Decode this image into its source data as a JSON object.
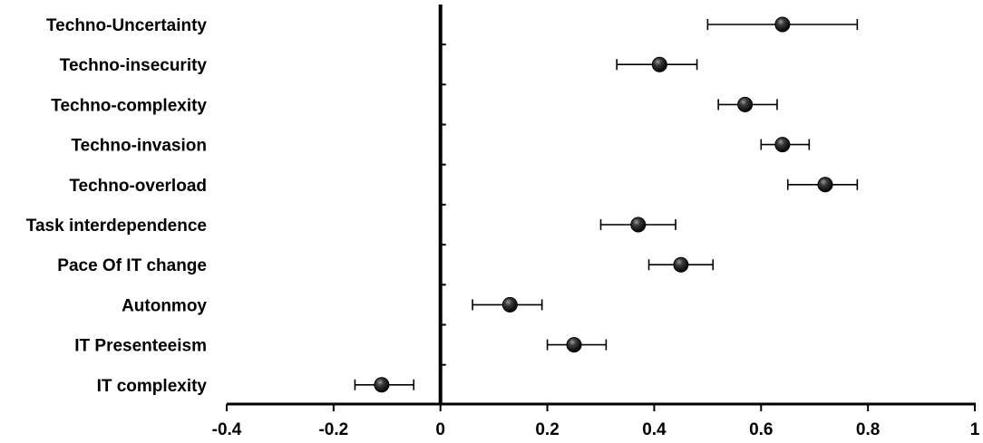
{
  "chart_data": {
    "type": "scatter",
    "title": "",
    "xlabel": "",
    "ylabel": "",
    "xlim": [
      -0.4,
      1
    ],
    "x_ticks": [
      "-0.4",
      "-0.2",
      "0",
      "0.2",
      "0.4",
      "0.6",
      "0.8",
      "1"
    ],
    "x_tick_values": [
      -0.4,
      -0.2,
      0,
      0.2,
      0.4,
      0.6,
      0.8,
      1
    ],
    "grid": false,
    "legend": "none",
    "marker_style": "black sphere with horizontal error bars",
    "categories": [
      "Techno-Uncertainty",
      "Techno-insecurity",
      "Techno-complexity",
      "Techno-invasion",
      "Techno-overload",
      "Task interdependence",
      "Pace Of IT change",
      "Autonmoy",
      "IT Presenteeism",
      "IT complexity"
    ],
    "values": [
      0.64,
      0.41,
      0.57,
      0.64,
      0.72,
      0.37,
      0.45,
      0.13,
      0.25,
      -0.11
    ],
    "error_low": [
      0.5,
      0.33,
      0.52,
      0.6,
      0.65,
      0.3,
      0.39,
      0.06,
      0.2,
      -0.16
    ],
    "error_high": [
      0.78,
      0.48,
      0.63,
      0.69,
      0.78,
      0.44,
      0.51,
      0.19,
      0.31,
      -0.05
    ]
  }
}
